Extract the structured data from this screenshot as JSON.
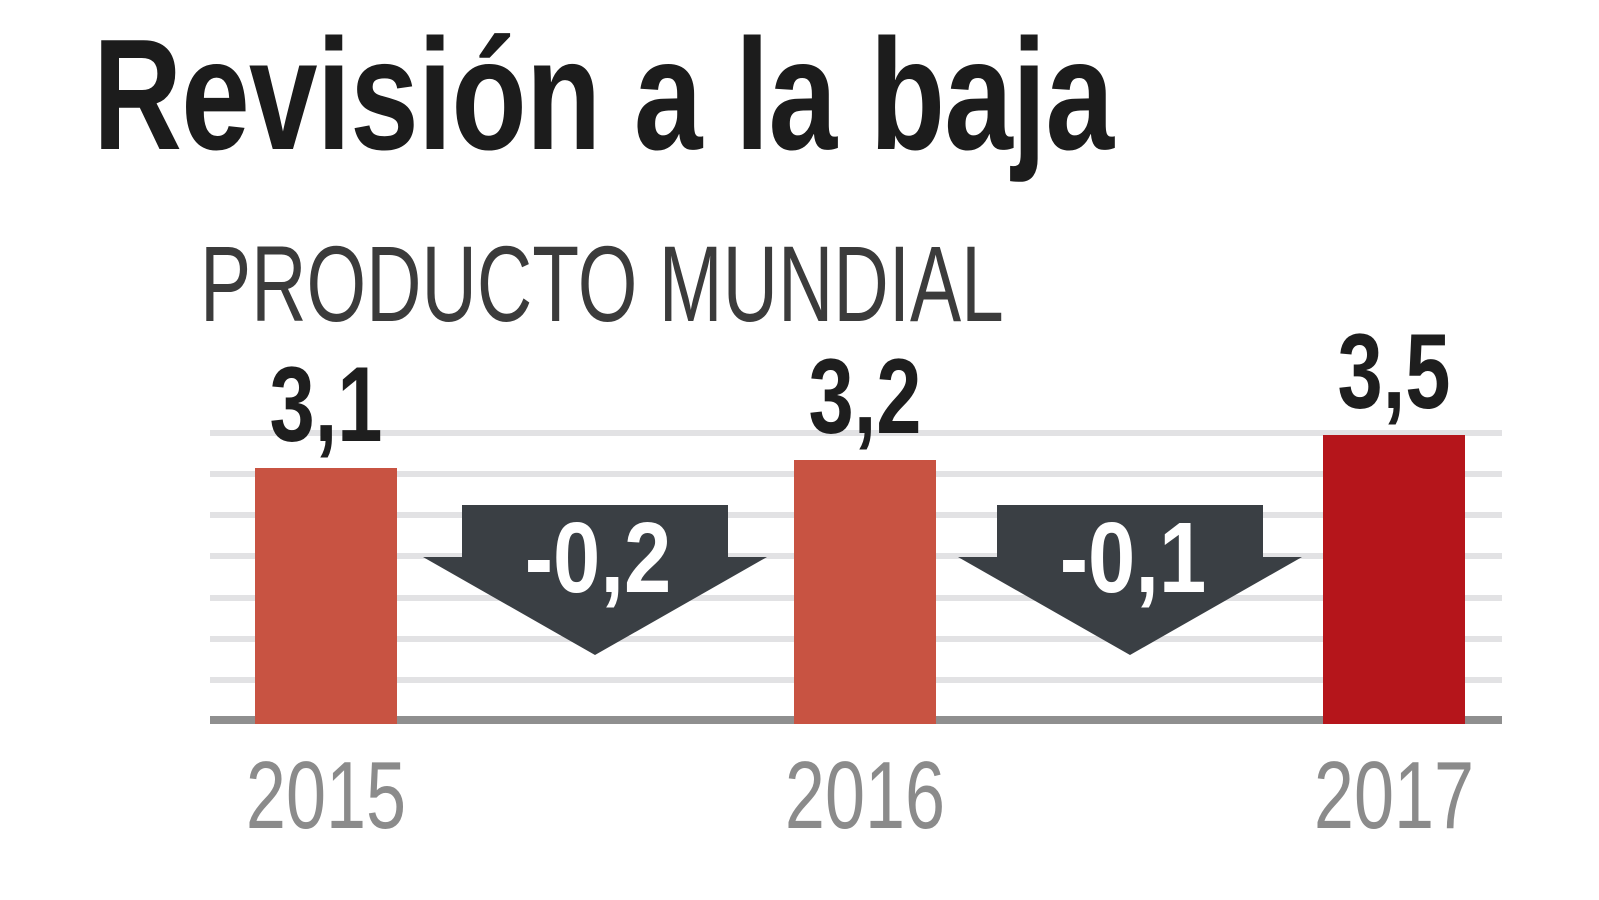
{
  "title": "Revisión a la baja",
  "subtitle": "PRODUCTO MUNDIAL",
  "chart_data": {
    "type": "bar",
    "title": "Revisión a la baja",
    "subtitle": "PRODUCTO MUNDIAL",
    "categories": [
      "2015",
      "2016",
      "2017"
    ],
    "values": [
      3.1,
      3.2,
      3.5
    ],
    "value_labels": [
      "3,1",
      "3,2",
      "3,5"
    ],
    "bar_colors": [
      "#c85342",
      "#c85342",
      "#b5151b"
    ],
    "ylim": [
      0,
      3.5
    ],
    "gridline_step": 0.5,
    "grid": true,
    "legend": "none",
    "annotations": [
      {
        "label": "-0,2",
        "value": -0.2,
        "between": [
          "2015",
          "2016"
        ],
        "shape": "down-arrow"
      },
      {
        "label": "-0,1",
        "value": -0.1,
        "between": [
          "2016",
          "2017"
        ],
        "shape": "down-arrow"
      }
    ],
    "annotation_color": "#3a3f44"
  }
}
